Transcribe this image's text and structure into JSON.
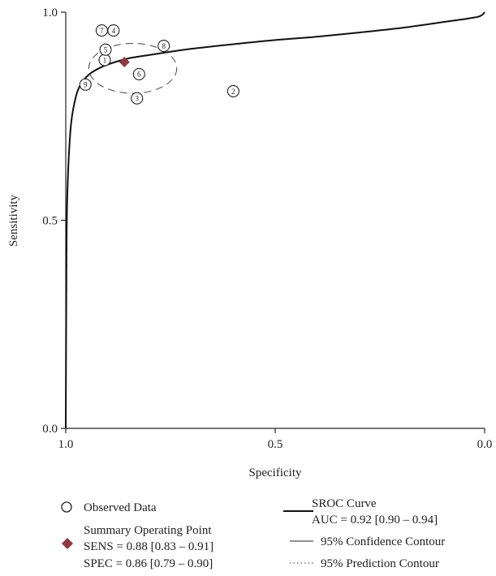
{
  "chart_data": {
    "type": "scatter",
    "title": "",
    "xlabel": "Specificity",
    "ylabel": "Sensitivity",
    "xlim": [
      1.0,
      0.0
    ],
    "ylim": [
      0.0,
      1.0
    ],
    "x_reversed": true,
    "grid": false,
    "x_ticks": [
      {
        "value": 1.0,
        "label": "1.0"
      },
      {
        "value": 0.5,
        "label": "0.5"
      },
      {
        "value": 0.0,
        "label": "0.0"
      }
    ],
    "y_ticks": [
      {
        "value": 0.0,
        "label": "0.0"
      },
      {
        "value": 0.5,
        "label": "0.5"
      },
      {
        "value": 1.0,
        "label": "1.0"
      }
    ],
    "observed": [
      {
        "label": "1",
        "spec": 0.907,
        "sens": 0.885
      },
      {
        "label": "2",
        "spec": 0.6,
        "sens": 0.81
      },
      {
        "label": "3",
        "spec": 0.83,
        "sens": 0.793
      },
      {
        "label": "4",
        "spec": 0.886,
        "sens": 0.956
      },
      {
        "label": "5",
        "spec": 0.905,
        "sens": 0.91
      },
      {
        "label": "6",
        "spec": 0.825,
        "sens": 0.851
      },
      {
        "label": "7",
        "spec": 0.914,
        "sens": 0.956
      },
      {
        "label": "8",
        "spec": 0.766,
        "sens": 0.919
      },
      {
        "label": "9",
        "spec": 0.953,
        "sens": 0.826
      }
    ],
    "summary_point": {
      "spec": 0.86,
      "sens": 0.88,
      "color": "#8b3a42"
    },
    "confidence_contour": {
      "center_spec": 0.84,
      "center_sens": 0.865,
      "radius_spec": 0.105,
      "radius_sens": 0.06
    },
    "sroc_curve": [
      [
        0.0,
        1.0
      ],
      [
        0.004,
        0.995
      ],
      [
        0.01,
        0.991
      ],
      [
        0.02,
        0.988
      ],
      [
        0.05,
        0.983
      ],
      [
        0.1,
        0.976
      ],
      [
        0.2,
        0.962
      ],
      [
        0.3,
        0.951
      ],
      [
        0.4,
        0.941
      ],
      [
        0.5,
        0.933
      ],
      [
        0.6,
        0.923
      ],
      [
        0.7,
        0.912
      ],
      [
        0.75,
        0.905
      ],
      [
        0.8,
        0.897
      ],
      [
        0.85,
        0.889
      ],
      [
        0.9,
        0.874
      ],
      [
        0.93,
        0.86
      ],
      [
        0.95,
        0.845
      ],
      [
        0.965,
        0.825
      ],
      [
        0.975,
        0.8
      ],
      [
        0.985,
        0.75
      ],
      [
        0.99,
        0.7
      ],
      [
        0.995,
        0.6
      ],
      [
        0.998,
        0.45
      ],
      [
        1.0,
        0.0
      ]
    ],
    "legend": {
      "observed_label": "Observed Data",
      "summary_label": "Summary Operating Point",
      "sens_text": "SENS = 0.88 [0.83 – 0.91]",
      "spec_text": "SPEC = 0.86 [0.79 – 0.90]",
      "sroc_label": "SROC Curve",
      "auc_text": "AUC = 0.92 [0.90 – 0.94]",
      "confidence_label": "95% Confidence Contour",
      "prediction_label": "95% Prediction Contour"
    }
  }
}
